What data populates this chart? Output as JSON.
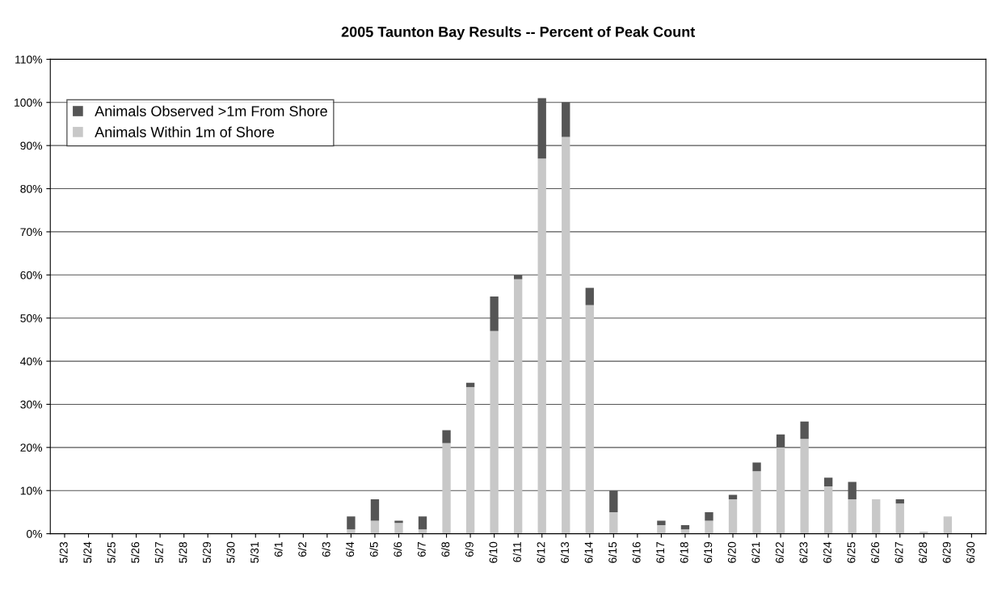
{
  "chart_data": {
    "type": "bar",
    "title": "2005 Taunton Bay Results -- Percent of Peak Count",
    "stacked": true,
    "grid": "y",
    "legend": "top left",
    "categories": [
      "5/23",
      "5/24",
      "5/25",
      "5/26",
      "5/27",
      "5/28",
      "5/29",
      "5/30",
      "5/31",
      "6/1",
      "6/2",
      "6/3",
      "6/4",
      "6/5",
      "6/6",
      "6/7",
      "6/8",
      "6/9",
      "6/10",
      "6/11",
      "6/12",
      "6/13",
      "6/14",
      "6/15",
      "6/16",
      "6/17",
      "6/18",
      "6/19",
      "6/20",
      "6/21",
      "6/22",
      "6/23",
      "6/24",
      "6/25",
      "6/26",
      "6/27",
      "6/28",
      "6/29",
      "6/30"
    ],
    "series": [
      {
        "name": "Animals Within 1m of Shore",
        "color": "#c8c8c8",
        "values": [
          0,
          0,
          0,
          0,
          0,
          0,
          0,
          0,
          0,
          0,
          0,
          0,
          1,
          3,
          2.5,
          1,
          21,
          34,
          47,
          59,
          87,
          92,
          53,
          5,
          0,
          2,
          1,
          3,
          8,
          14.5,
          20,
          22,
          11,
          8,
          8,
          7,
          0.5,
          4,
          0
        ]
      },
      {
        "name": "Animals Observed >1m From Shore",
        "color": "#555555",
        "values": [
          0,
          0,
          0,
          0,
          0,
          0,
          0,
          0,
          0,
          0,
          0,
          0,
          3,
          5,
          0.5,
          3,
          3,
          1,
          8,
          1,
          14,
          8,
          4,
          5,
          0,
          1,
          1,
          2,
          1,
          2,
          3,
          4,
          2,
          4,
          0,
          1,
          0,
          0,
          0
        ]
      }
    ],
    "ylim": [
      0,
      110
    ],
    "yticks": [
      {
        "value": 0,
        "label": "0%"
      },
      {
        "value": 10,
        "label": "10%"
      },
      {
        "value": 20,
        "label": "20%"
      },
      {
        "value": 30,
        "label": "30%"
      },
      {
        "value": 40,
        "label": "40%"
      },
      {
        "value": 50,
        "label": "50%"
      },
      {
        "value": 60,
        "label": "60%"
      },
      {
        "value": 70,
        "label": "70%"
      },
      {
        "value": 80,
        "label": "80%"
      },
      {
        "value": 90,
        "label": "90%"
      },
      {
        "value": 100,
        "label": "100%"
      },
      {
        "value": 110,
        "label": "110%"
      }
    ]
  }
}
